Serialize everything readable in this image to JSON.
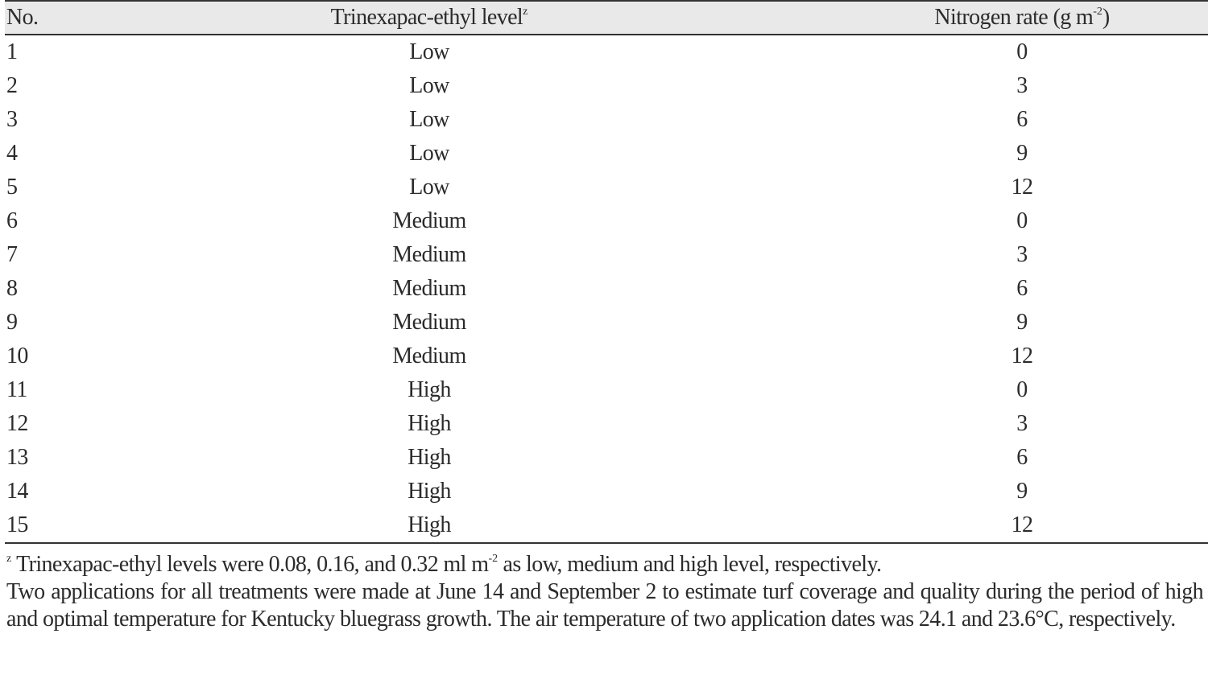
{
  "table": {
    "headers": {
      "no": "No.",
      "trinexapac": "Trinexapac-ethyl level",
      "trinexapac_sup": "z",
      "nitrogen_prefix": "Nitrogen rate (g m",
      "nitrogen_sup": "-2",
      "nitrogen_suffix": ")"
    },
    "rows": [
      {
        "no": "1",
        "level": "Low",
        "nitrogen": "0"
      },
      {
        "no": "2",
        "level": "Low",
        "nitrogen": "3"
      },
      {
        "no": "3",
        "level": "Low",
        "nitrogen": "6"
      },
      {
        "no": "4",
        "level": "Low",
        "nitrogen": "9"
      },
      {
        "no": "5",
        "level": "Low",
        "nitrogen": "12"
      },
      {
        "no": "6",
        "level": "Medium",
        "nitrogen": "0"
      },
      {
        "no": "7",
        "level": "Medium",
        "nitrogen": "3"
      },
      {
        "no": "8",
        "level": "Medium",
        "nitrogen": "6"
      },
      {
        "no": "9",
        "level": "Medium",
        "nitrogen": "9"
      },
      {
        "no": "10",
        "level": "Medium",
        "nitrogen": "12"
      },
      {
        "no": "11",
        "level": "High",
        "nitrogen": "0"
      },
      {
        "no": "12",
        "level": "High",
        "nitrogen": "3"
      },
      {
        "no": "13",
        "level": "High",
        "nitrogen": "6"
      },
      {
        "no": "14",
        "level": "High",
        "nitrogen": "9"
      },
      {
        "no": "15",
        "level": "High",
        "nitrogen": "12"
      }
    ]
  },
  "footnotes": {
    "note1_sup": "z",
    "note1_prefix": " Trinexapac-ethyl levels were 0.08, 0.16, and 0.32 ml m",
    "note1_sup2": "-2",
    "note1_suffix": " as low, medium and high level, respectively.",
    "note2": "Two applications for all treatments were made at June 14 and September 2 to estimate turf coverage and quality during the period of high and optimal temperature for Kentucky bluegrass growth. The air temperature of two application dates was 24.1 and 23.6°C, respectively."
  }
}
